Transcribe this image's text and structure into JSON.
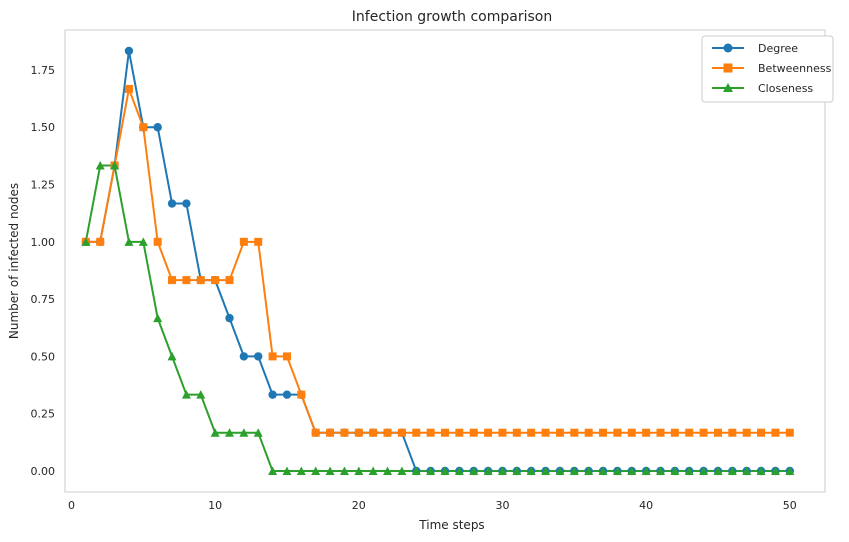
{
  "chart_data": {
    "type": "line",
    "title": "Infection growth comparison",
    "xlabel": "Time steps",
    "ylabel": "Number of infected nodes",
    "x": [
      1,
      2,
      3,
      4,
      5,
      6,
      7,
      8,
      9,
      10,
      11,
      12,
      13,
      14,
      15,
      16,
      17,
      18,
      19,
      20,
      21,
      22,
      23,
      24,
      25,
      26,
      27,
      28,
      29,
      30,
      31,
      32,
      33,
      34,
      35,
      36,
      37,
      38,
      39,
      40,
      41,
      42,
      43,
      44,
      45,
      46,
      47,
      48,
      49,
      50
    ],
    "xlim": [
      -0.45,
      52.45
    ],
    "ylim": [
      -0.0917,
      1.9243
    ],
    "xticks": [
      0,
      10,
      20,
      30,
      40,
      50
    ],
    "yticks": [
      0.0,
      0.25,
      0.5,
      0.75,
      1.0,
      1.25,
      1.5,
      1.75
    ],
    "xtick_labels": [
      "0",
      "10",
      "20",
      "30",
      "40",
      "50"
    ],
    "ytick_labels": [
      "0.00",
      "0.25",
      "0.50",
      "0.75",
      "1.00",
      "1.25",
      "1.50",
      "1.75"
    ],
    "grid": false,
    "legend_position": "top-right",
    "series": [
      {
        "name": "Degree",
        "color": "#1f77b4",
        "marker": "circle",
        "values": [
          1.0,
          1.0,
          1.333,
          1.833,
          1.5,
          1.5,
          1.167,
          1.167,
          0.833,
          0.833,
          0.667,
          0.5,
          0.5,
          0.333,
          0.333,
          0.333,
          0.167,
          0.167,
          0.167,
          0.167,
          0.167,
          0.167,
          0.167,
          0,
          0,
          0,
          0,
          0,
          0,
          0,
          0,
          0,
          0,
          0,
          0,
          0,
          0,
          0,
          0,
          0,
          0,
          0,
          0,
          0,
          0,
          0,
          0,
          0,
          0,
          0
        ]
      },
      {
        "name": "Betweenness",
        "color": "#ff7f0e",
        "marker": "square",
        "values": [
          1.0,
          1.0,
          1.333,
          1.667,
          1.5,
          1.0,
          0.833,
          0.833,
          0.833,
          0.833,
          0.833,
          1.0,
          1.0,
          0.5,
          0.5,
          0.333,
          0.167,
          0.167,
          0.167,
          0.167,
          0.167,
          0.167,
          0.167,
          0.167,
          0.167,
          0.167,
          0.167,
          0.167,
          0.167,
          0.167,
          0.167,
          0.167,
          0.167,
          0.167,
          0.167,
          0.167,
          0.167,
          0.167,
          0.167,
          0.167,
          0.167,
          0.167,
          0.167,
          0.167,
          0.167,
          0.167,
          0.167,
          0.167,
          0.167,
          0.167
        ]
      },
      {
        "name": "Closeness",
        "color": "#2ca02c",
        "marker": "triangle",
        "values": [
          1.0,
          1.333,
          1.333,
          1.0,
          1.0,
          0.667,
          0.5,
          0.333,
          0.333,
          0.167,
          0.167,
          0.167,
          0.167,
          0,
          0,
          0,
          0,
          0,
          0,
          0,
          0,
          0,
          0,
          0,
          0,
          0,
          0,
          0,
          0,
          0,
          0,
          0,
          0,
          0,
          0,
          0,
          0,
          0,
          0,
          0,
          0,
          0,
          0,
          0,
          0,
          0,
          0,
          0,
          0,
          0
        ]
      }
    ]
  }
}
